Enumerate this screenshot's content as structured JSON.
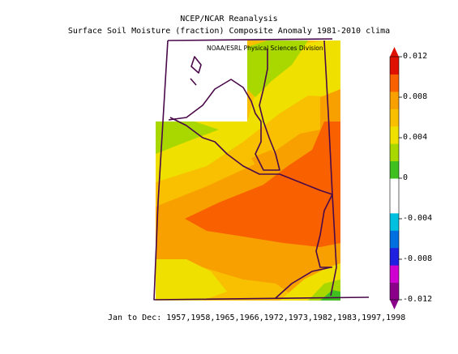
{
  "header": {
    "title_line1": "NCEP/NCAR Reanalysis",
    "title_line2": "Surface Soil Moisture (fraction) Composite Anomaly 1981-2010 clima",
    "credit": "NOAA/ESRL Physical Sciences Division"
  },
  "footer": {
    "years_text": "Jan to Dec: 1957,1958,1965,1966,1972,1973,1982,1983,1997,1998"
  },
  "colorbar": {
    "levels": [
      {
        "label": "0.012",
        "value": 0.012
      },
      {
        "label": "0.008",
        "value": 0.008
      },
      {
        "label": "0.004",
        "value": 0.004
      },
      {
        "label": "0",
        "value": 0
      },
      {
        "label": "-0.004",
        "value": -0.004
      },
      {
        "label": "-0.008",
        "value": -0.008
      },
      {
        "label": "-0.012",
        "value": -0.012
      }
    ],
    "colors": [
      "#8a008a",
      "#d000d0",
      "#2020e0",
      "#0070e0",
      "#00c0e0",
      "#ffffff",
      "#ffffff",
      "#40c020",
      "#a8d800",
      "#f0e000",
      "#f8c000",
      "#f8a000",
      "#f86000",
      "#e01000"
    ]
  },
  "map_colors": {
    "green": "#a8d800",
    "bright_green": "#40c020",
    "yellow": "#f0e000",
    "light_orange": "#f8c000",
    "orange": "#f8a000",
    "red_orange": "#f86000",
    "boundary": "#4a0a4a"
  }
}
